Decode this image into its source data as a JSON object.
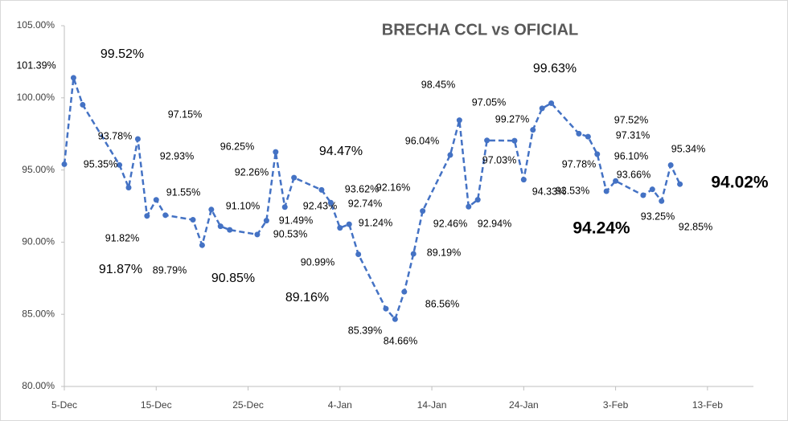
{
  "chart_data": {
    "type": "line",
    "title": "BRECHA CCL vs OFICIAL",
    "x": [
      0,
      1,
      2,
      6,
      7,
      8,
      9,
      10,
      11,
      14,
      15,
      16,
      17,
      18,
      21,
      22,
      23,
      24,
      25,
      28,
      29,
      30,
      31,
      32,
      35,
      36,
      37,
      38,
      39,
      42,
      43,
      44,
      45,
      46,
      49,
      50,
      51,
      52,
      53,
      56,
      57,
      58,
      59,
      60,
      63,
      64,
      65,
      66,
      67
    ],
    "series": [
      {
        "name": "BRECHA CCL vs OFICIAL",
        "color": "#4472c4",
        "values": [
          95.4,
          101.39,
          99.52,
          95.35,
          93.78,
          97.15,
          91.82,
          92.93,
          91.87,
          91.55,
          89.79,
          92.26,
          91.1,
          90.85,
          90.53,
          91.49,
          96.25,
          92.43,
          94.47,
          93.62,
          92.74,
          90.99,
          91.24,
          89.16,
          85.39,
          84.66,
          86.56,
          89.19,
          92.16,
          96.04,
          98.45,
          92.46,
          92.94,
          97.05,
          97.03,
          94.33,
          97.78,
          99.27,
          99.63,
          97.52,
          97.31,
          96.1,
          93.53,
          94.24,
          93.25,
          93.66,
          92.85,
          95.34,
          94.02
        ],
        "value_labels": [
          null,
          "101.39%",
          "99.52%",
          "95.35%",
          "93.78%",
          "97.15%",
          "91.82%",
          "92.93%",
          "91.87%",
          "91.55%",
          "89.79%",
          "92.26%",
          "91.10%",
          "90.85%",
          "90.53%",
          "91.49%",
          "96.25%",
          "92.43%",
          "94.47%",
          "93.62%",
          "92.74%",
          "90.99%",
          "91.24%",
          "89.16%",
          "85.39%",
          "84.66%",
          "86.56%",
          "89.19%",
          "92.16%",
          "96.04%",
          "98.45%",
          "92.46%",
          "92.94%",
          "97.05%",
          "97.03%",
          "94.33%",
          "97.78%",
          "99.27%",
          "99.63%",
          "97.52%",
          "97.31%",
          "96.10%",
          "93.53%",
          "94.24%",
          "93.25%",
          "93.66%",
          "92.85%",
          "95.34%",
          "94.02%"
        ]
      }
    ],
    "xlim": [
      0,
      75
    ],
    "xticks": [
      {
        "value": 0,
        "label": "5-Dec"
      },
      {
        "value": 10,
        "label": "15-Dec"
      },
      {
        "value": 20,
        "label": "25-Dec"
      },
      {
        "value": 30,
        "label": "4-Jan"
      },
      {
        "value": 40,
        "label": "14-Jan"
      },
      {
        "value": 50,
        "label": "24-Jan"
      },
      {
        "value": 60,
        "label": "3-Feb"
      },
      {
        "value": 70,
        "label": "13-Feb"
      }
    ],
    "ylim": [
      80,
      105
    ],
    "yticks": [
      {
        "value": 80,
        "label": "80.00%"
      },
      {
        "value": 85,
        "label": "85.00%"
      },
      {
        "value": 90,
        "label": "90.00%"
      },
      {
        "value": 95,
        "label": "95.00%"
      },
      {
        "value": 100,
        "label": "100.00%"
      },
      {
        "value": 105,
        "label": "105.00%"
      }
    ],
    "grid": false
  }
}
